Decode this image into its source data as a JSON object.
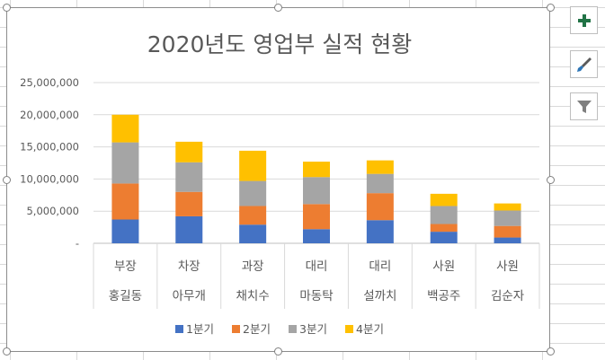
{
  "chart_data": {
    "type": "bar",
    "stacked": true,
    "title": "2020년도 영업부 실적 현황",
    "categories": [
      {
        "rank": "부장",
        "name": "홍길동"
      },
      {
        "rank": "차장",
        "name": "아무개"
      },
      {
        "rank": "과장",
        "name": "채치수"
      },
      {
        "rank": "대리",
        "name": "마동탁"
      },
      {
        "rank": "대리",
        "name": "설까치"
      },
      {
        "rank": "사원",
        "name": "백공주"
      },
      {
        "rank": "사원",
        "name": "김순자"
      }
    ],
    "series": [
      {
        "name": "1분기",
        "color": "#4472C4",
        "values": [
          3700000,
          4200000,
          2900000,
          2200000,
          3600000,
          1800000,
          900000
        ]
      },
      {
        "name": "2분기",
        "color": "#ED7D31",
        "values": [
          5600000,
          3800000,
          2900000,
          3900000,
          4200000,
          1200000,
          1800000
        ]
      },
      {
        "name": "3분기",
        "color": "#A5A5A5",
        "values": [
          6400000,
          4600000,
          3900000,
          4200000,
          3000000,
          2800000,
          2400000
        ]
      },
      {
        "name": "4분기",
        "color": "#FFC000",
        "values": [
          4300000,
          3200000,
          4700000,
          2400000,
          2100000,
          1900000,
          1100000
        ]
      }
    ],
    "ylim": [
      0,
      25000000
    ],
    "yticks": [
      0,
      5000000,
      10000000,
      15000000,
      20000000,
      25000000
    ],
    "ytick_labels": [
      "-",
      "5,000,000",
      "10,000,000",
      "15,000,000",
      "20,000,000",
      "25,000,000"
    ],
    "grid": true,
    "legend_position": "bottom"
  },
  "side_buttons": {
    "add_icon": "plus-icon",
    "style_icon": "brush-icon",
    "filter_icon": "filter-icon"
  }
}
